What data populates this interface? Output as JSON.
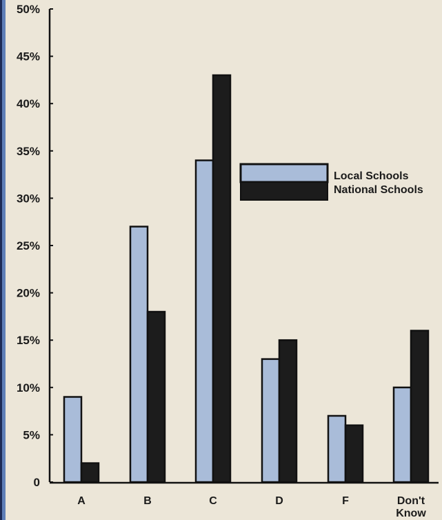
{
  "chart_data": {
    "type": "bar",
    "title": "",
    "xlabel": "",
    "ylabel": "",
    "ylim": [
      0,
      50
    ],
    "y_ticks": [
      "0",
      "5%",
      "10%",
      "15%",
      "20%",
      "25%",
      "30%",
      "35%",
      "40%",
      "45%",
      "50%"
    ],
    "categories": [
      "A",
      "B",
      "C",
      "D",
      "F",
      "Don't Know"
    ],
    "series": [
      {
        "name": "Local Schools",
        "color": "#a9bcd9",
        "values": [
          9,
          27,
          34,
          13,
          7,
          10
        ]
      },
      {
        "name": "National Schools",
        "color": "#1c1c1c",
        "values": [
          2,
          18,
          43,
          15,
          6,
          16
        ]
      }
    ],
    "legend_position": "upper-right",
    "grid": false
  }
}
